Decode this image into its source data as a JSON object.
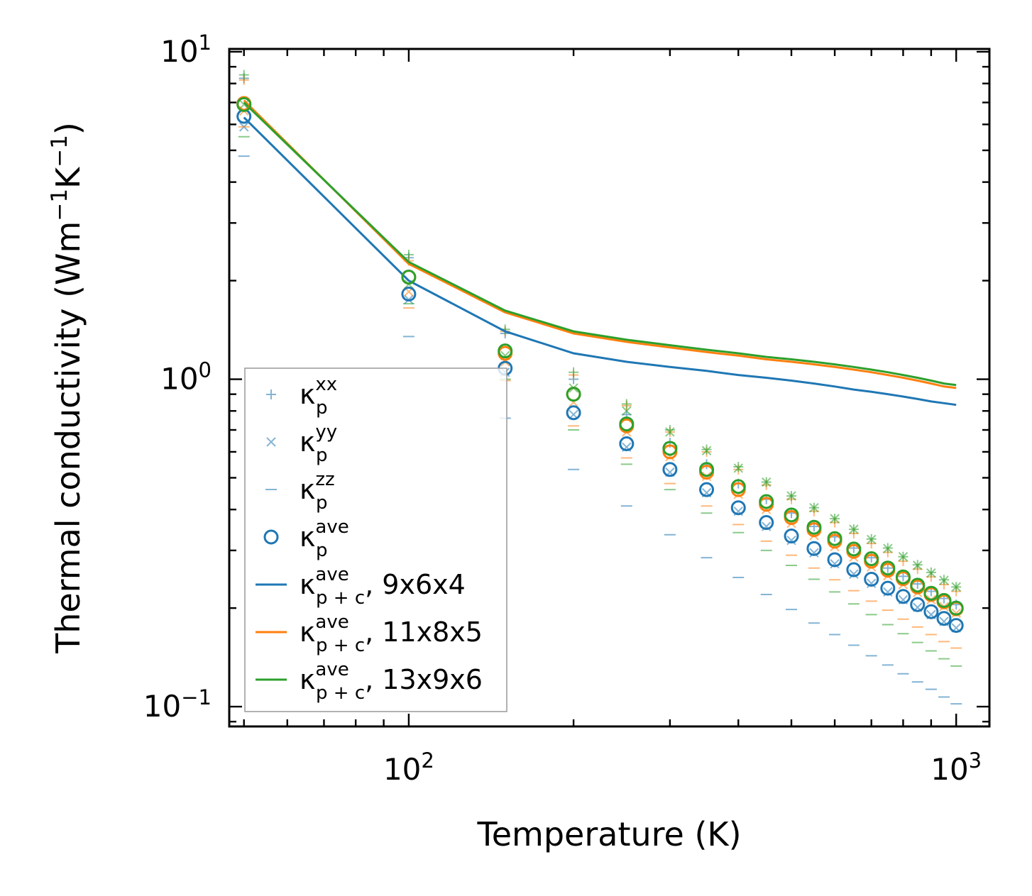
{
  "chart_data": {
    "type": "scatter",
    "xscale": "log",
    "yscale": "log",
    "xlim": [
      47,
      1150
    ],
    "ylim": [
      0.087,
      10.2
    ],
    "xlabel": "Temperature (K)",
    "ylabel_text": "Thermal conductivity (Wm",
    "ylabel_sup1": "−1",
    "ylabel_mid": "K",
    "ylabel_sup2": "−1",
    "ylabel_end": ")",
    "x_ticks": [
      {
        "value": 100,
        "base": "10",
        "exp": "2"
      },
      {
        "value": 1000,
        "base": "10",
        "exp": "3"
      }
    ],
    "y_ticks": [
      {
        "value": 0.1,
        "base": "10",
        "exp": "−1"
      },
      {
        "value": 1,
        "base": "10",
        "exp": "0"
      },
      {
        "value": 10,
        "base": "10",
        "exp": "1"
      }
    ],
    "x": [
      50,
      100,
      150,
      200,
      250,
      300,
      350,
      400,
      450,
      500,
      550,
      600,
      650,
      700,
      750,
      800,
      850,
      900,
      950,
      1000
    ],
    "series": [
      {
        "grid": "9x6x4",
        "color": "#1f77b4",
        "kxx": [
          8.3,
          2.35,
          1.38,
          1.0,
          0.78,
          0.64,
          0.55,
          0.48,
          0.43,
          0.39,
          0.355,
          0.33,
          0.305,
          0.285,
          0.265,
          0.25,
          0.237,
          0.225,
          0.214,
          0.205
        ],
        "kyy": [
          5.9,
          1.75,
          1.05,
          0.78,
          0.62,
          0.52,
          0.45,
          0.395,
          0.355,
          0.322,
          0.295,
          0.273,
          0.254,
          0.238,
          0.224,
          0.212,
          0.201,
          0.191,
          0.182,
          0.174
        ],
        "kzz": [
          4.8,
          1.35,
          0.76,
          0.53,
          0.41,
          0.335,
          0.285,
          0.248,
          0.22,
          0.198,
          0.18,
          0.166,
          0.154,
          0.143,
          0.134,
          0.126,
          0.119,
          0.113,
          0.107,
          0.102
        ],
        "kave": [
          6.35,
          1.82,
          1.08,
          0.79,
          0.635,
          0.53,
          0.46,
          0.405,
          0.365,
          0.332,
          0.304,
          0.281,
          0.262,
          0.245,
          0.23,
          0.217,
          0.205,
          0.195,
          0.186,
          0.177
        ],
        "kpc": [
          6.3,
          2.0,
          1.4,
          1.2,
          1.13,
          1.09,
          1.06,
          1.03,
          1.01,
          0.99,
          0.97,
          0.95,
          0.93,
          0.915,
          0.9,
          0.885,
          0.87,
          0.855,
          0.845,
          0.835
        ]
      },
      {
        "grid": "11x8x5",
        "color": "#ff7f0e",
        "kxx": [
          8.2,
          2.3,
          1.4,
          1.03,
          0.83,
          0.69,
          0.6,
          0.53,
          0.475,
          0.43,
          0.395,
          0.365,
          0.338,
          0.315,
          0.296,
          0.278,
          0.263,
          0.249,
          0.236,
          0.225
        ],
        "kyy": [
          6.6,
          1.85,
          1.13,
          0.85,
          0.69,
          0.58,
          0.505,
          0.445,
          0.4,
          0.363,
          0.333,
          0.308,
          0.286,
          0.267,
          0.251,
          0.236,
          0.223,
          0.212,
          0.202,
          0.193
        ],
        "kzz": [
          5.9,
          1.65,
          0.99,
          0.72,
          0.575,
          0.48,
          0.41,
          0.36,
          0.32,
          0.29,
          0.265,
          0.244,
          0.226,
          0.21,
          0.197,
          0.185,
          0.175,
          0.166,
          0.158,
          0.151
        ],
        "kave": [
          6.95,
          2.05,
          1.2,
          0.9,
          0.72,
          0.6,
          0.52,
          0.46,
          0.415,
          0.378,
          0.347,
          0.32,
          0.298,
          0.278,
          0.261,
          0.246,
          0.232,
          0.22,
          0.209,
          0.199
        ],
        "kpc": [
          7.1,
          2.25,
          1.6,
          1.38,
          1.3,
          1.25,
          1.21,
          1.18,
          1.15,
          1.13,
          1.11,
          1.09,
          1.07,
          1.05,
          1.03,
          1.01,
          0.99,
          0.97,
          0.95,
          0.94
        ]
      },
      {
        "grid": "13x9x6",
        "color": "#2ca02c",
        "kxx": [
          8.5,
          2.4,
          1.42,
          1.05,
          0.84,
          0.7,
          0.61,
          0.54,
          0.485,
          0.44,
          0.405,
          0.375,
          0.348,
          0.325,
          0.305,
          0.287,
          0.271,
          0.257,
          0.244,
          0.232
        ],
        "kyy": [
          6.9,
          1.95,
          1.18,
          0.94,
          0.8,
          0.69,
          0.605,
          0.535,
          0.485,
          0.44,
          0.405,
          0.375,
          0.348,
          0.324,
          0.304,
          0.287,
          0.27,
          0.256,
          0.243,
          0.232
        ],
        "kzz": [
          5.5,
          1.7,
          1.0,
          0.7,
          0.55,
          0.46,
          0.39,
          0.34,
          0.3,
          0.27,
          0.245,
          0.224,
          0.206,
          0.191,
          0.178,
          0.167,
          0.157,
          0.148,
          0.14,
          0.133
        ],
        "kave": [
          6.9,
          2.05,
          1.22,
          0.9,
          0.73,
          0.615,
          0.53,
          0.47,
          0.423,
          0.385,
          0.353,
          0.326,
          0.303,
          0.283,
          0.265,
          0.249,
          0.235,
          0.222,
          0.211,
          0.2
        ],
        "kpc": [
          7.0,
          2.28,
          1.62,
          1.4,
          1.32,
          1.27,
          1.23,
          1.2,
          1.17,
          1.15,
          1.13,
          1.11,
          1.09,
          1.07,
          1.05,
          1.03,
          1.01,
          0.99,
          0.97,
          0.96
        ]
      }
    ],
    "legend": {
      "location": "lower-left",
      "entries": [
        {
          "kind": "plus",
          "sym": "κ",
          "sub": "p",
          "sup": "xx",
          "suffix": "",
          "color": "#1f77b4"
        },
        {
          "kind": "cross",
          "sym": "κ",
          "sub": "p",
          "sup": "yy",
          "suffix": "",
          "color": "#1f77b4"
        },
        {
          "kind": "dash",
          "sym": "κ",
          "sub": "p",
          "sup": "zz",
          "suffix": "",
          "color": "#1f77b4"
        },
        {
          "kind": "circle",
          "sym": "κ",
          "sub": "p",
          "sup": "ave",
          "suffix": "",
          "color": "#1f77b4"
        },
        {
          "kind": "line",
          "sym": "κ",
          "sub": "p + c",
          "sup": "ave",
          "suffix": ", 9x6x4",
          "color": "#1f77b4"
        },
        {
          "kind": "line",
          "sym": "κ",
          "sub": "p + c",
          "sup": "ave",
          "suffix": ", 11x8x5",
          "color": "#ff7f0e"
        },
        {
          "kind": "line",
          "sym": "κ",
          "sub": "p + c",
          "sup": "ave",
          "suffix": ", 13x9x6",
          "color": "#2ca02c"
        }
      ]
    }
  }
}
